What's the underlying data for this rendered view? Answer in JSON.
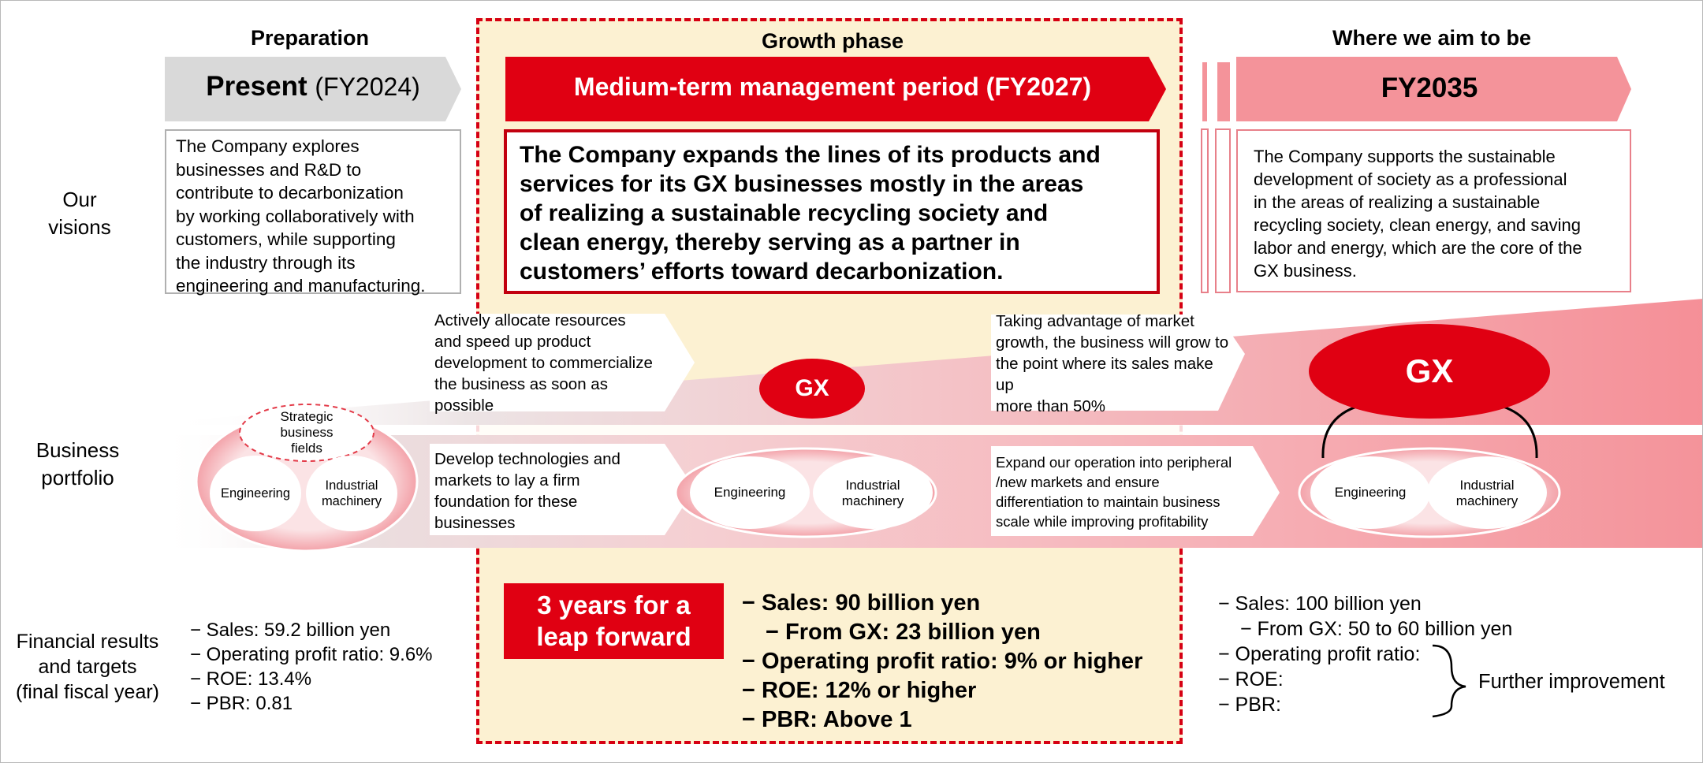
{
  "columns": {
    "preparation": "Preparation",
    "growth": "Growth phase",
    "aim": "Where we aim to be"
  },
  "banners": {
    "present_main": "Present",
    "present_year": "(FY2024)",
    "medium": "Medium-term management period (FY2027)",
    "fy2035": "FY2035"
  },
  "row_labels": {
    "visions": [
      "Our",
      "visions"
    ],
    "portfolio": [
      "Business",
      "portfolio"
    ],
    "financial": [
      "Financial results",
      "and targets",
      "(final fiscal year)"
    ]
  },
  "visions": {
    "present": [
      "The Company explores",
      "businesses and R&D to",
      "contribute to decarbonization",
      "by working collaboratively with",
      "customers, while supporting",
      "the industry through its",
      "engineering and manufacturing."
    ],
    "medium": [
      "The Company expands the lines of its products and",
      "services for its GX businesses mostly in the areas",
      "of realizing a sustainable recycling society and",
      "clean energy, thereby serving as a partner in",
      "customers’ efforts toward decarbonization."
    ],
    "fy2035": [
      "The Company supports the sustainable",
      "development of society as a professional",
      "in the areas of realizing a sustainable",
      "recycling society, clean energy, and saving",
      "labor and energy, which are the core of the",
      "GX business."
    ]
  },
  "portfolio": {
    "arrow_top_1": [
      "Actively allocate resources",
      "and speed up product",
      "development to commercialize",
      "the business as soon as",
      "possible"
    ],
    "arrow_bottom_1": [
      "Develop technologies and",
      "markets to lay a firm",
      "foundation for these",
      "businesses"
    ],
    "arrow_top_2": [
      "Taking advantage of market",
      "growth, the business will grow to",
      "the point where its sales make up",
      "more than 50%"
    ],
    "arrow_bottom_2": [
      "Expand our operation into peripheral",
      "/new markets and ensure",
      "differentiation to  maintain business",
      "scale while improving profitability"
    ],
    "strategic": [
      "Strategic",
      "business",
      "fields"
    ],
    "engineering": "Engineering",
    "industrial": [
      "Industrial",
      "machinery"
    ],
    "gx": "GX"
  },
  "financials": {
    "present": [
      "− Sales: 59.2 billion yen",
      "− Operating profit ratio: 9.6%",
      "− ROE: 13.4%",
      "− PBR: 0.81"
    ],
    "leap": [
      "3 years for a",
      "leap forward"
    ],
    "medium": {
      "sales": "− Sales: 90 billion yen",
      "gx": "− From GX: 23 billion yen",
      "opr": "− Operating profit ratio: 9% or higher",
      "roe": "− ROE: 12% or higher",
      "pbr": "− PBR: Above 1"
    },
    "fy2035": {
      "sales": "− Sales: 100 billion yen",
      "gx": "− From GX: 50 to 60 billion yen",
      "opr": "− Operating profit ratio:",
      "roe": "− ROE:",
      "pbr": "− PBR:",
      "note": "Further improvement"
    }
  },
  "colors": {
    "red": "#e00012",
    "dark_red": "#c2000f",
    "pink": "#f4939a",
    "cream": "#fcf1d2",
    "gray_banner": "#d9d9d9"
  }
}
